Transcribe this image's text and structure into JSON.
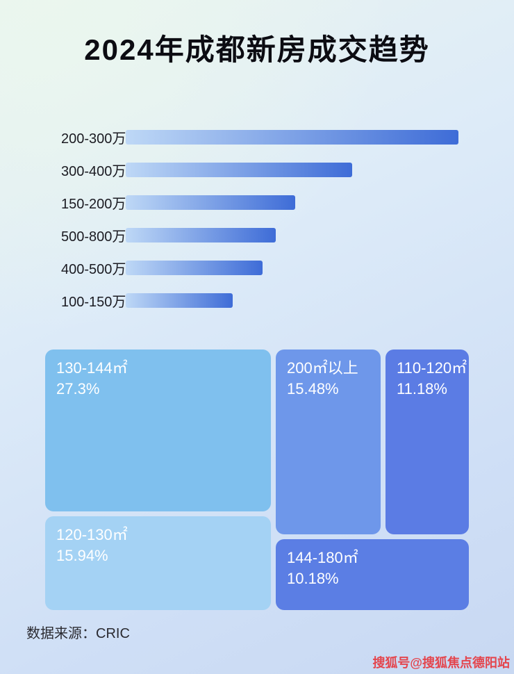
{
  "page": {
    "title": "2024年成都新房成交趋势",
    "source_label": "数据来源：CRIC",
    "watermark": "搜狐号@搜狐焦点德阳站"
  },
  "chart_data": [
    {
      "type": "bar",
      "orientation": "horizontal",
      "title": "2024年成都新房成交趋势（总价段）",
      "categories": [
        "200-300万",
        "300-400万",
        "150-200万",
        "500-800万",
        "400-500万",
        "100-150万"
      ],
      "values": [
        100,
        68,
        51,
        45,
        41,
        32
      ],
      "value_unit": "relative-bar-length",
      "xlim": [
        0,
        100
      ],
      "bar_gradient": [
        "#bed8f6",
        "#3e6cd7"
      ],
      "grid": false,
      "legend": false
    },
    {
      "type": "treemap",
      "title": "成交面积段占比",
      "items": [
        {
          "label": "130-144㎡",
          "percent": "27.3%",
          "value": 27.3,
          "color": "#7fc0ee"
        },
        {
          "label": "120-130㎡",
          "percent": "15.94%",
          "value": 15.94,
          "color": "#a4d2f4"
        },
        {
          "label": "200㎡以上",
          "percent": "15.48%",
          "value": 15.48,
          "color": "#6e97ea"
        },
        {
          "label": "110-120㎡",
          "percent": "11.18%",
          "value": 11.18,
          "color": "#5b7ce4"
        },
        {
          "label": "144-180㎡",
          "percent": "10.18%",
          "value": 10.18,
          "color": "#5b7ee4"
        }
      ]
    }
  ]
}
